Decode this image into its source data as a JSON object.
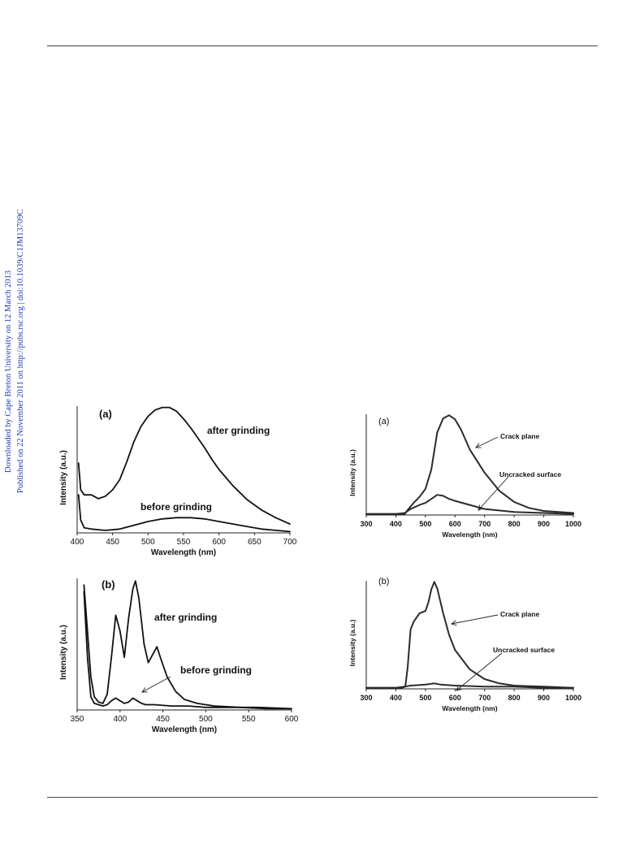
{
  "side_note": {
    "line1": "Downloaded by Cape Breton University on 12 March 2013",
    "line2": "Published on 22 November 2011 on http://pubs.rsc.org | doi:10.1039/C1JM13709C",
    "color": "#1f3fb5"
  },
  "chart_data": [
    {
      "type": "line",
      "panel_label": "(a)",
      "xlabel": "Wavelength (nm)",
      "ylabel": "Intensity (a.u.)",
      "xlim": [
        400,
        700
      ],
      "xticks": [
        "400",
        "450",
        "500",
        "550",
        "600",
        "650",
        "700"
      ],
      "series": [
        {
          "name": "after grinding",
          "x": [
            402,
            405,
            410,
            420,
            430,
            440,
            450,
            460,
            470,
            480,
            490,
            500,
            510,
            520,
            530,
            540,
            550,
            560,
            570,
            580,
            590,
            600,
            620,
            640,
            660,
            680,
            700
          ],
          "y": [
            55,
            34,
            30,
            30,
            27,
            29,
            34,
            42,
            56,
            72,
            84,
            92,
            97,
            99,
            99,
            96,
            90,
            83,
            75,
            67,
            58,
            50,
            37,
            26,
            18,
            12,
            7
          ]
        },
        {
          "name": "before grinding",
          "x": [
            402,
            405,
            410,
            420,
            440,
            460,
            480,
            500,
            520,
            540,
            560,
            580,
            600,
            620,
            640,
            660,
            680,
            700
          ],
          "y": [
            30,
            10,
            4,
            3,
            2,
            3,
            6,
            9,
            11,
            12,
            12,
            11,
            9,
            7,
            5,
            3,
            2,
            1
          ]
        }
      ]
    },
    {
      "type": "line",
      "panel_label": "(b)",
      "xlabel": "Wavelength (nm)",
      "ylabel": "Intensity (a.u.)",
      "xlim": [
        350,
        600
      ],
      "xticks": [
        "350",
        "400",
        "450",
        "500",
        "550",
        "600"
      ],
      "series": [
        {
          "name": "after grinding",
          "x": [
            358,
            362,
            366,
            370,
            375,
            380,
            385,
            390,
            395,
            400,
            405,
            410,
            415,
            418,
            422,
            428,
            433,
            438,
            443,
            448,
            455,
            465,
            475,
            490,
            510,
            540,
            570,
            600
          ],
          "y": [
            95,
            60,
            25,
            10,
            6,
            5,
            12,
            40,
            72,
            60,
            40,
            70,
            92,
            98,
            85,
            50,
            36,
            42,
            48,
            38,
            25,
            14,
            8,
            5,
            3,
            2,
            1,
            1
          ]
        },
        {
          "name": "before grinding",
          "x": [
            358,
            362,
            366,
            370,
            375,
            380,
            385,
            390,
            395,
            400,
            405,
            410,
            415,
            420,
            425,
            430,
            440,
            460,
            480,
            500,
            530,
            560,
            600
          ],
          "y": [
            90,
            40,
            10,
            5,
            4,
            3,
            4,
            7,
            9,
            7,
            5,
            6,
            9,
            7,
            5,
            4,
            4,
            3,
            3,
            2,
            2,
            2,
            1
          ]
        }
      ]
    },
    {
      "type": "line",
      "panel_label": "(a)",
      "xlabel": "Wavelength (nm)",
      "ylabel": "Intensity (a.u.)",
      "xlim": [
        300,
        1000
      ],
      "xticks": [
        "300",
        "400",
        "500",
        "600",
        "700",
        "800",
        "900",
        "1000"
      ],
      "series": [
        {
          "name": "Crack plane",
          "x": [
            300,
            350,
            400,
            430,
            440,
            460,
            480,
            500,
            520,
            540,
            560,
            580,
            600,
            620,
            650,
            700,
            750,
            800,
            850,
            900,
            1000
          ],
          "y": [
            1,
            1,
            1,
            1,
            5,
            12,
            18,
            26,
            45,
            82,
            96,
            99,
            95,
            85,
            65,
            42,
            24,
            13,
            7,
            4,
            2
          ]
        },
        {
          "name": "Uncracked surface",
          "x": [
            300,
            400,
            430,
            450,
            480,
            500,
            520,
            540,
            560,
            580,
            600,
            650,
            700,
            800,
            900,
            1000
          ],
          "y": [
            1,
            1,
            2,
            6,
            10,
            12,
            16,
            20,
            19,
            16,
            14,
            10,
            6,
            3,
            2,
            1
          ]
        }
      ]
    },
    {
      "type": "line",
      "panel_label": "(b)",
      "xlabel": "Wavelength (nm)",
      "ylabel": "Intensity (a.u.)",
      "xlim": [
        300,
        1000
      ],
      "xticks": [
        "300",
        "400",
        "500",
        "600",
        "700",
        "800",
        "900",
        "1000"
      ],
      "series": [
        {
          "name": "Crack plane",
          "x": [
            300,
            350,
            400,
            420,
            432,
            440,
            450,
            460,
            480,
            500,
            510,
            520,
            530,
            540,
            560,
            580,
            600,
            650,
            700,
            750,
            800,
            900,
            1000
          ],
          "y": [
            1,
            1,
            1,
            1,
            2,
            20,
            55,
            62,
            70,
            72,
            80,
            92,
            99,
            93,
            70,
            50,
            36,
            18,
            9,
            5,
            3,
            2,
            1
          ]
        },
        {
          "name": "Uncracked surface",
          "x": [
            300,
            400,
            430,
            450,
            500,
            530,
            550,
            600,
            700,
            800,
            900,
            1000
          ],
          "y": [
            1,
            1,
            2,
            3,
            4,
            5,
            4,
            3,
            2,
            2,
            1,
            1
          ]
        }
      ]
    }
  ]
}
